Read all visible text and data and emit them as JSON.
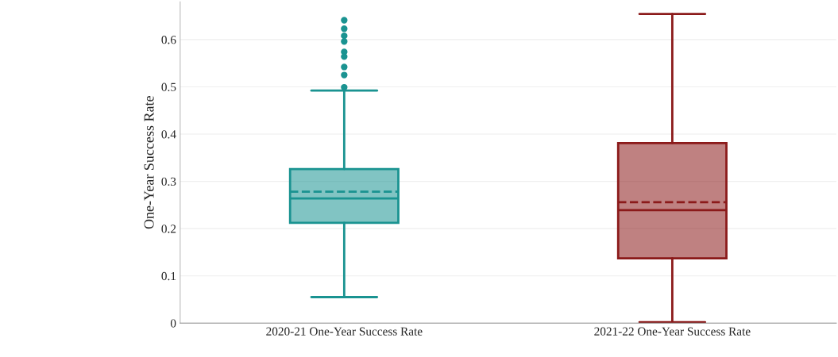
{
  "chart_data": {
    "type": "box",
    "ylabel": "One-Year Success Rate",
    "categories": [
      "2020-21 One-Year Success Rate",
      "2021-22 One-Year Success Rate"
    ],
    "series": [
      {
        "color": "#1a9391",
        "boxes": [
          {
            "low": 0.055,
            "q1": 0.212,
            "median": 0.264,
            "q3": 0.326,
            "high": 0.492,
            "mean": 0.278,
            "outliers": [
              0.641,
              0.623,
              0.608,
              0.596,
              0.574,
              0.564,
              0.542,
              0.525,
              0.499
            ]
          },
          null
        ]
      },
      {
        "color": "#8b1a1a",
        "boxes": [
          null,
          {
            "low": 0.002,
            "q1": 0.137,
            "median": 0.239,
            "q3": 0.381,
            "high": 0.654,
            "mean": 0.256
          }
        ]
      }
    ],
    "ylim": [
      0,
      0.68
    ],
    "yticks": [
      0,
      0.1,
      0.2,
      0.3,
      0.4,
      0.5,
      0.6
    ],
    "grid": "y",
    "legend": false
  }
}
